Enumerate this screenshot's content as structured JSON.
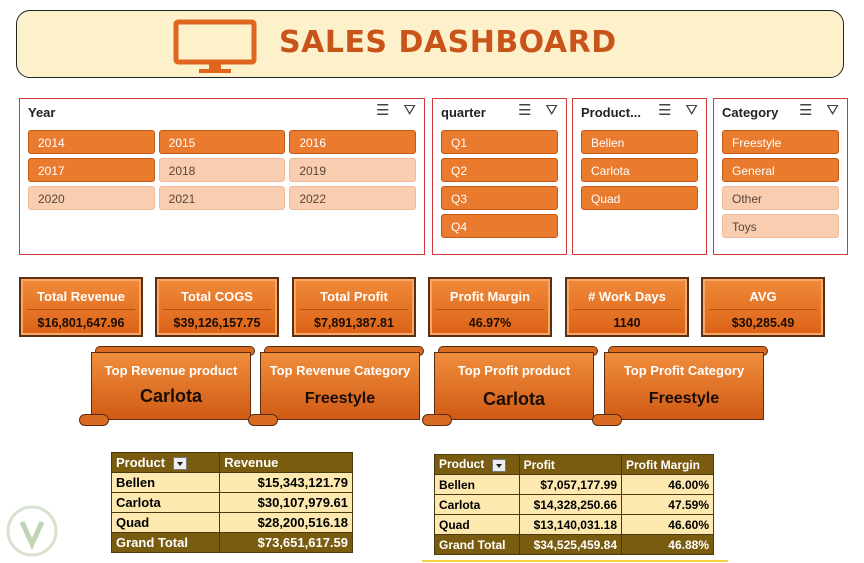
{
  "header": {
    "title": "SALES DASHBOARD",
    "icon": "monitor-icon",
    "accent": "#c9541a"
  },
  "slicers": [
    {
      "id": "year",
      "title": "Year",
      "columns": 3,
      "items": [
        {
          "label": "2014",
          "selected": true
        },
        {
          "label": "2015",
          "selected": true
        },
        {
          "label": "2016",
          "selected": true
        },
        {
          "label": "2017",
          "selected": true
        },
        {
          "label": "2018",
          "selected": false
        },
        {
          "label": "2019",
          "selected": false
        },
        {
          "label": "2020",
          "selected": false
        },
        {
          "label": "2021",
          "selected": false
        },
        {
          "label": "2022",
          "selected": false
        }
      ]
    },
    {
      "id": "quarter",
      "title": "quarter",
      "columns": 1,
      "items": [
        {
          "label": "Q1",
          "selected": true
        },
        {
          "label": "Q2",
          "selected": true
        },
        {
          "label": "Q3",
          "selected": true
        },
        {
          "label": "Q4",
          "selected": true
        }
      ]
    },
    {
      "id": "product",
      "title": "Product...",
      "columns": 1,
      "items": [
        {
          "label": "Bellen",
          "selected": true
        },
        {
          "label": "Carlota",
          "selected": true
        },
        {
          "label": "Quad",
          "selected": true
        }
      ]
    },
    {
      "id": "category",
      "title": "Category",
      "columns": 1,
      "items": [
        {
          "label": "Freestyle",
          "selected": true
        },
        {
          "label": "General",
          "selected": true
        },
        {
          "label": "Other",
          "selected": false
        },
        {
          "label": "Toys",
          "selected": false
        }
      ]
    }
  ],
  "kpis": [
    {
      "label": "Total Revenue",
      "value": "$16,801,647.96"
    },
    {
      "label": "Total COGS",
      "value": "$39,126,157.75"
    },
    {
      "label": "Total Profit",
      "value": "$7,891,387.81"
    },
    {
      "label": "Profit Margin",
      "value": "46.97%"
    },
    {
      "label": "# Work Days",
      "value": "1140"
    },
    {
      "label": "AVG",
      "value": "$30,285.49"
    }
  ],
  "scrolls": [
    {
      "label": "Top Revenue product",
      "value": "Carlota"
    },
    {
      "label": "Top Revenue Category",
      "value": "Freestyle"
    },
    {
      "label": "Top Profit product",
      "value": "Carlota"
    },
    {
      "label": "Top Profit Category",
      "value": "Freestyle"
    }
  ],
  "pivot_revenue": {
    "headers": [
      "Product",
      "Revenue"
    ],
    "rows": [
      [
        "Bellen",
        "$15,343,121.79"
      ],
      [
        "Carlota",
        "$30,107,979.61"
      ],
      [
        "Quad",
        "$28,200,516.18"
      ]
    ],
    "total": [
      "Grand Total",
      "$73,651,617.59"
    ]
  },
  "pivot_profit": {
    "headers": [
      "Product",
      "Profit",
      "Profit Margin"
    ],
    "rows": [
      [
        "Bellen",
        "$7,057,177.99",
        "46.00%"
      ],
      [
        "Carlota",
        "$14,328,250.66",
        "47.59%"
      ],
      [
        "Quad",
        "$13,140,031.18",
        "46.60%"
      ]
    ],
    "total": [
      "Grand Total",
      "$34,525,459.84",
      "46.88%"
    ]
  }
}
